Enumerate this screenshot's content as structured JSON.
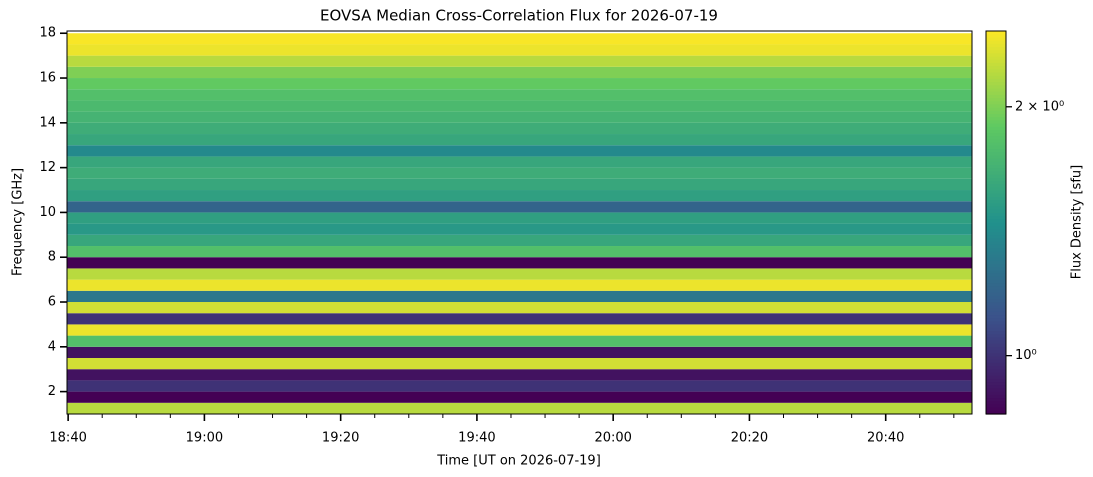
{
  "chart_data": {
    "type": "heatmap",
    "title": "EOVSA Median Cross-Correlation Flux for 2026-07-19",
    "xlabel": "Time [UT on 2026-07-19]",
    "ylabel": "Frequency [GHz]",
    "colorbar_label": "Flux Density [sfu]",
    "colormap": "viridis",
    "color_scale": "log",
    "xlim": [
      "18:39:50",
      "20:52:40"
    ],
    "xticks": [
      "18:40",
      "19:00",
      "19:20",
      "19:40",
      "20:00",
      "20:20",
      "20:40"
    ],
    "xminorticks": [
      "18:45",
      "18:50",
      "18:55",
      "19:05",
      "19:10",
      "19:15",
      "19:25",
      "19:30",
      "19:35",
      "19:45",
      "19:50",
      "19:55",
      "20:05",
      "20:10",
      "20:15",
      "20:25",
      "20:30",
      "20:35",
      "20:45",
      "20:50"
    ],
    "ylim": [
      1.0,
      18.1
    ],
    "yticks": [
      2,
      4,
      6,
      8,
      10,
      12,
      14,
      16,
      18
    ],
    "clim": [
      0.85,
      2.47
    ],
    "cticks": [
      {
        "value": 1,
        "label": "10⁰"
      },
      {
        "value": 2,
        "label": "2 × 10⁰"
      }
    ],
    "y_bins": [
      1.0,
      1.5,
      2.0,
      2.5,
      3.0,
      3.5,
      4.0,
      4.5,
      5.0,
      5.5,
      6.0,
      6.5,
      7.0,
      7.5,
      8.0,
      8.5,
      9.0,
      9.5,
      10.0,
      10.5,
      11.0,
      11.5,
      12.0,
      12.5,
      13.0,
      13.5,
      14.0,
      14.5,
      15.0,
      15.5,
      16.0,
      16.5,
      17.0,
      17.5,
      18.0
    ],
    "values": [
      2.2,
      0.85,
      1.0,
      0.9,
      2.3,
      0.9,
      1.8,
      2.4,
      1.0,
      2.3,
      1.3,
      2.4,
      2.2,
      0.85,
      1.8,
      1.6,
      1.5,
      1.55,
      1.2,
      1.55,
      1.6,
      1.65,
      1.6,
      1.4,
      1.6,
      1.65,
      1.7,
      1.75,
      1.8,
      1.9,
      2.0,
      2.2,
      2.4,
      2.45
    ]
  }
}
